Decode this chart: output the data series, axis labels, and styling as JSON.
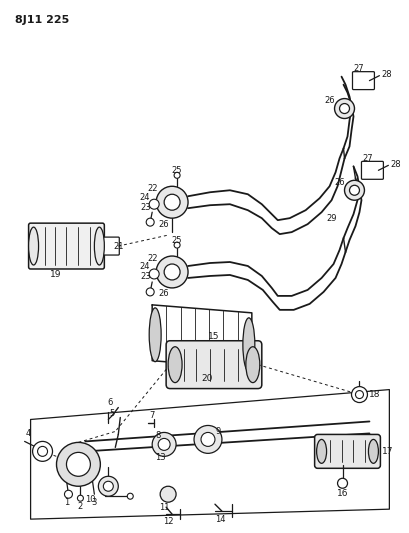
{
  "title": "8J11 225",
  "bg": "#ffffff",
  "lc": "#1a1a1a",
  "figsize": [
    4.09,
    5.33
  ],
  "dpi": 100
}
